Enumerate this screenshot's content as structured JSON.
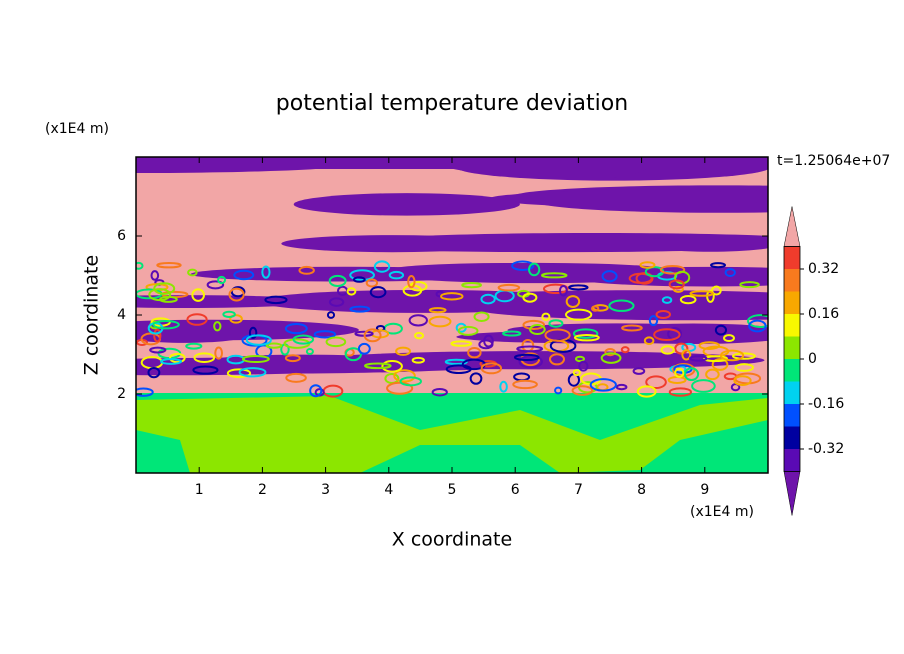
{
  "chart_data": {
    "type": "contour",
    "title": "potential temperature deviation",
    "x_label": "X coordinate",
    "y_label": "Z coordinate",
    "x_unit": "(x1E4 m)",
    "y_unit": "(x1E4 m)",
    "time_label": "t=1.25064e+07",
    "xlim": [
      0,
      10
    ],
    "xticks": [
      1,
      2,
      3,
      4,
      5,
      6,
      7,
      8,
      9
    ],
    "ylim": [
      0,
      8
    ],
    "yticks": [
      2,
      4,
      6
    ],
    "colorbar": {
      "levels": [
        -0.4,
        -0.32,
        -0.24,
        -0.16,
        -0.08,
        0,
        0.08,
        0.16,
        0.24,
        0.32,
        0.4
      ],
      "colors": [
        "#6e14aa",
        "#5a0ab4",
        "#0000a0",
        "#0050ff",
        "#00d2f0",
        "#00e678",
        "#8ce600",
        "#f8f800",
        "#f8a800",
        "#f87a1e",
        "#f03c2c",
        "#f2a6a6"
      ],
      "ticks": [
        -0.32,
        -0.16,
        0,
        0.16,
        0.32
      ]
    }
  }
}
